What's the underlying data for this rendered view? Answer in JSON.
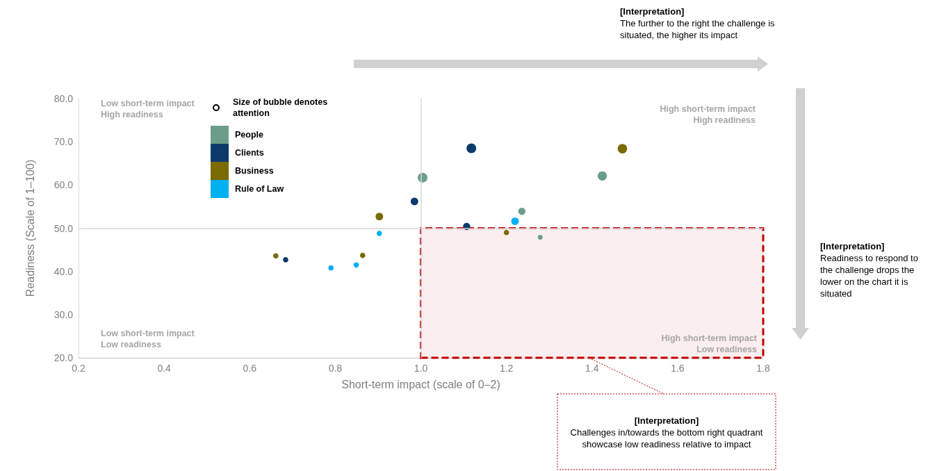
{
  "chart_data": {
    "type": "bubble",
    "xlabel": "Short-term impact (scale of 0–2)",
    "ylabel": "Readiness (Scale of 1–100)",
    "legend_title": "Size of bubble denotes attention",
    "xlim": [
      0.2,
      1.8
    ],
    "xticks": [
      0.2,
      0.4,
      0.6,
      0.8,
      {
        "value": 1,
        "label": "1.0"
      },
      1.2,
      1.4,
      1.6,
      1.8
    ],
    "ylim": [
      20,
      80
    ],
    "yticks": [
      {
        "value": 20,
        "label": "20.0"
      },
      {
        "value": 30,
        "label": "30.0"
      },
      {
        "value": 40,
        "label": "40.0"
      },
      {
        "value": 50,
        "label": "50.0"
      },
      {
        "value": 60,
        "label": "60.0"
      },
      {
        "value": 70,
        "label": "70.0"
      },
      {
        "value": 80,
        "label": "80.0"
      }
    ],
    "series": [
      {
        "name": "People",
        "color": "#6a9e88",
        "x": [
          1.004,
          1.424,
          1.236,
          1.279
        ],
        "values": [
          61.7,
          62.1,
          53.9,
          47.9
        ],
        "sizes": [
          1,
          0.9,
          0.55,
          0.25
        ]
      },
      {
        "name": "Clients",
        "color": "#0d3a6b",
        "x": [
          1.118,
          0.985,
          1.107,
          0.684
        ],
        "values": [
          68.5,
          56.2,
          50.4,
          42.7
        ],
        "sizes": [
          1,
          0.6,
          0.55,
          0.3
        ]
      },
      {
        "name": "Business",
        "color": "#7a6a00",
        "x": [
          1.471,
          0.903,
          1.2,
          0.661,
          0.864
        ],
        "values": [
          68.4,
          52.7,
          49.0,
          43.6,
          43.7
        ],
        "sizes": [
          0.95,
          0.6,
          0.3,
          0.3,
          0.3
        ]
      },
      {
        "name": "Rule of Law",
        "color": "#00b0f0",
        "x": [
          1.22,
          0.903,
          0.79,
          0.849
        ],
        "values": [
          51.6,
          48.8,
          40.8,
          41.5
        ],
        "sizes": [
          0.6,
          0.3,
          0.3,
          0.3
        ]
      }
    ],
    "ref_lines": [
      {
        "axis": "x",
        "value": 1,
        "label": null,
        "color": "#d9d9d9"
      },
      {
        "axis": "y",
        "value": 50,
        "label": null,
        "color": "#d9d9d9"
      }
    ],
    "bands": [
      {
        "axis": "x",
        "from": 1,
        "to": 1.8,
        "label": null,
        "color": "#fbeeee"
      }
    ],
    "annotations": [
      "Low short-term impact\nHigh readiness",
      "High short-term impact\nHigh readiness",
      "Low short-term impact\nLow readiness",
      "High short-term impact\nLow readiness",
      "[Interpretation]\nThe further to the right the challenge is situated, the higher its impact",
      "[Interpretation]\nReadiness to respond to the challenge drops the lower on the chart it is situated",
      "[Interpretation]\nChallenges in/towards the bottom right quadrant showcase low readiness relative to impact"
    ],
    "legend": "top left",
    "marker": "circle",
    "grid": false
  }
}
